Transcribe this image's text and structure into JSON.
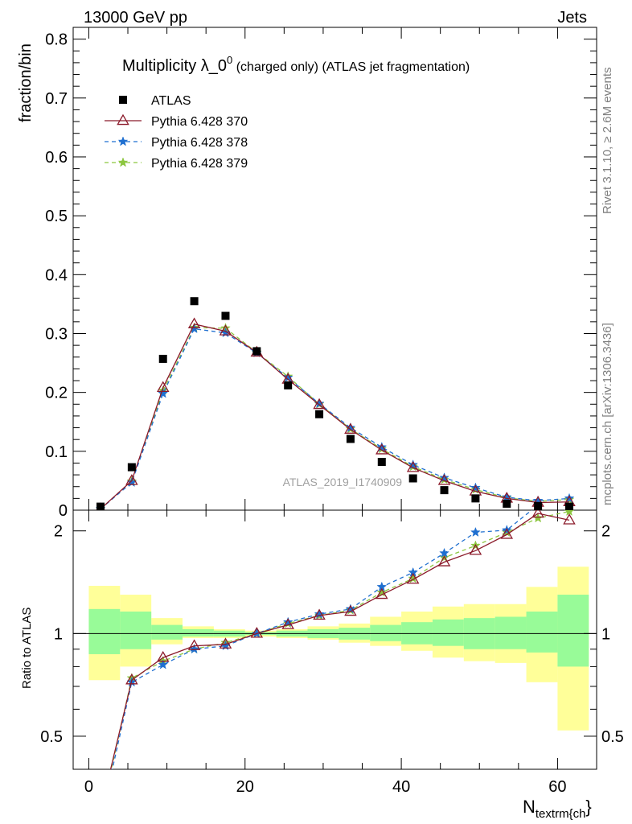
{
  "header": {
    "left": "13000 GeV pp",
    "right": "Jets"
  },
  "side": {
    "rivet": "Rivet 3.1.10, ≥ 2.6M events",
    "mcplots": "mcplots.cern.ch [arXiv:1306.3436]"
  },
  "chart_data": {
    "type": "scatter",
    "title_main": "Multiplicity λ_0",
    "title_sup": "0",
    "title_tail": " (charged only) (ATLAS jet fragmentation)",
    "xlabel": "N",
    "xlabel_sub": "textrm{ch",
    "xlabel_close": "}",
    "ylabel": "fraction/bin",
    "ratio_ylabel": "Ratio to ATLAS",
    "watermark": "ATLAS_2019_I1740909",
    "xlim": [
      -2,
      65
    ],
    "ylim": [
      0,
      0.82
    ],
    "ratio_ylim": [
      0.4,
      2.3
    ],
    "ratio_scale": "log",
    "x_ticks": [
      0,
      20,
      40,
      60
    ],
    "x_tick_labels": [
      "0",
      "20",
      "40",
      "60"
    ],
    "y_ticks": [
      0,
      0.1,
      0.2,
      0.3,
      0.4,
      0.5,
      0.6,
      0.7,
      0.8
    ],
    "y_tick_labels": [
      "0",
      "0.1",
      "0.2",
      "0.3",
      "0.4",
      "0.5",
      "0.6",
      "0.7",
      "0.8"
    ],
    "ratio_ticks": [
      0.5,
      1,
      2
    ],
    "ratio_tick_labels": [
      "0.5",
      "1",
      "2"
    ],
    "legend_position": "top-left",
    "bin_edges": [
      0,
      4,
      8,
      12,
      16,
      20,
      24,
      28,
      32,
      36,
      40,
      44,
      48,
      52,
      56,
      60,
      64
    ],
    "x": [
      1.5,
      5.5,
      9.5,
      13.5,
      17.5,
      21.5,
      25.5,
      29.5,
      33.5,
      37.5,
      41.5,
      45.5,
      49.5,
      53.5,
      57.5,
      61.5
    ],
    "series": [
      {
        "name": "ATLAS",
        "marker": "square",
        "color": "#000000",
        "values": [
          0.006,
          0.073,
          0.257,
          0.355,
          0.33,
          0.27,
          0.212,
          0.163,
          0.121,
          0.082,
          0.054,
          0.034,
          0.02,
          0.011,
          0.007,
          0.006
        ]
      },
      {
        "name": "Pythia 6.428 370",
        "marker": "triangle",
        "color": "#8b1a2a",
        "dash": "solid",
        "values": [
          0.002,
          0.05,
          0.208,
          0.316,
          0.304,
          0.268,
          0.222,
          0.179,
          0.137,
          0.102,
          0.072,
          0.05,
          0.032,
          0.02,
          0.013,
          0.014
        ],
        "ratio": [
          0.3,
          0.73,
          0.85,
          0.92,
          0.93,
          1.0,
          1.06,
          1.13,
          1.16,
          1.3,
          1.44,
          1.62,
          1.75,
          1.95,
          2.25,
          2.15
        ]
      },
      {
        "name": "Pythia 6.428 378",
        "marker": "star",
        "color": "#1f6fd0",
        "dash": "dashed",
        "values": [
          0.002,
          0.047,
          0.198,
          0.308,
          0.301,
          0.267,
          0.225,
          0.181,
          0.14,
          0.107,
          0.077,
          0.055,
          0.038,
          0.022,
          0.016,
          0.02
        ],
        "ratio": [
          0.28,
          0.72,
          0.81,
          0.9,
          0.92,
          1.0,
          1.08,
          1.14,
          1.18,
          1.37,
          1.51,
          1.72,
          1.98,
          2.01,
          2.38,
          2.45
        ]
      },
      {
        "name": "Pythia 6.428 379",
        "marker": "star",
        "color": "#8cc63f",
        "dash": "dashed",
        "values": [
          0.002,
          0.049,
          0.203,
          0.31,
          0.309,
          0.268,
          0.227,
          0.18,
          0.138,
          0.104,
          0.074,
          0.052,
          0.035,
          0.021,
          0.015,
          0.018
        ],
        "ratio": [
          0.29,
          0.74,
          0.83,
          0.9,
          0.94,
          1.0,
          1.07,
          1.13,
          1.17,
          1.32,
          1.45,
          1.67,
          1.81,
          1.98,
          2.18,
          2.28
        ]
      }
    ],
    "uncertainty_bands": {
      "stat": {
        "color": "#98fb98",
        "lo": [
          0.87,
          0.9,
          0.96,
          0.98,
          0.98,
          0.99,
          0.98,
          0.97,
          0.96,
          0.95,
          0.93,
          0.92,
          0.9,
          0.9,
          0.88,
          0.8
        ],
        "hi": [
          1.18,
          1.16,
          1.06,
          1.03,
          1.02,
          1.01,
          1.02,
          1.03,
          1.04,
          1.06,
          1.08,
          1.1,
          1.11,
          1.12,
          1.16,
          1.3
        ]
      },
      "total": {
        "color": "#ffff99",
        "lo": [
          0.73,
          0.8,
          0.93,
          0.97,
          0.97,
          0.98,
          0.97,
          0.96,
          0.94,
          0.92,
          0.89,
          0.85,
          0.83,
          0.82,
          0.72,
          0.52
        ],
        "hi": [
          1.38,
          1.3,
          1.11,
          1.05,
          1.03,
          1.02,
          1.03,
          1.05,
          1.07,
          1.12,
          1.16,
          1.2,
          1.22,
          1.22,
          1.37,
          1.57
        ]
      }
    }
  }
}
